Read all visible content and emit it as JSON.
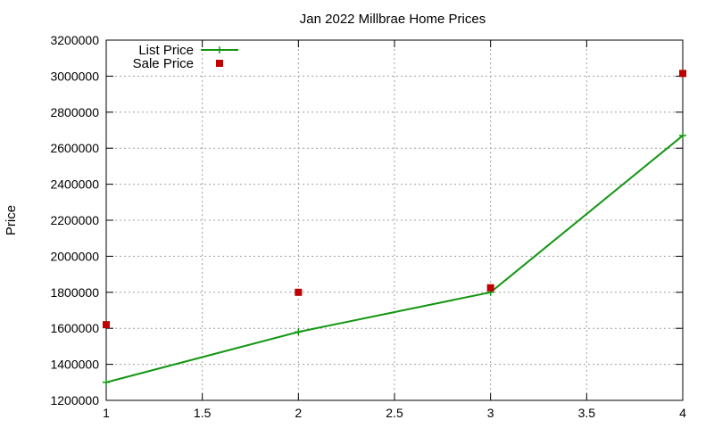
{
  "chart_data": {
    "type": "line",
    "title": "Jan 2022 Millbrae Home Prices",
    "xlabel": "",
    "ylabel": "Price",
    "xlim": [
      1,
      4
    ],
    "ylim": [
      1200000,
      3200000
    ],
    "x_ticks": [
      "1",
      "1.5",
      "2",
      "2.5",
      "3",
      "3.5",
      "4"
    ],
    "y_ticks": [
      "1200000",
      "1400000",
      "1600000",
      "1800000",
      "2000000",
      "2200000",
      "2400000",
      "2600000",
      "2800000",
      "3000000",
      "3200000"
    ],
    "grid": true,
    "legend_position": "top-left",
    "series": [
      {
        "name": "List Price",
        "style": "line-points",
        "marker": "plus",
        "color": "#129612",
        "x": [
          1,
          2,
          3,
          4
        ],
        "y": [
          1300000,
          1580000,
          1800000,
          2670000
        ]
      },
      {
        "name": "Sale Price",
        "style": "points",
        "marker": "square",
        "color": "#c00000",
        "x": [
          1,
          2,
          3,
          4
        ],
        "y": [
          1620000,
          1800000,
          1825000,
          3015000
        ]
      }
    ]
  }
}
